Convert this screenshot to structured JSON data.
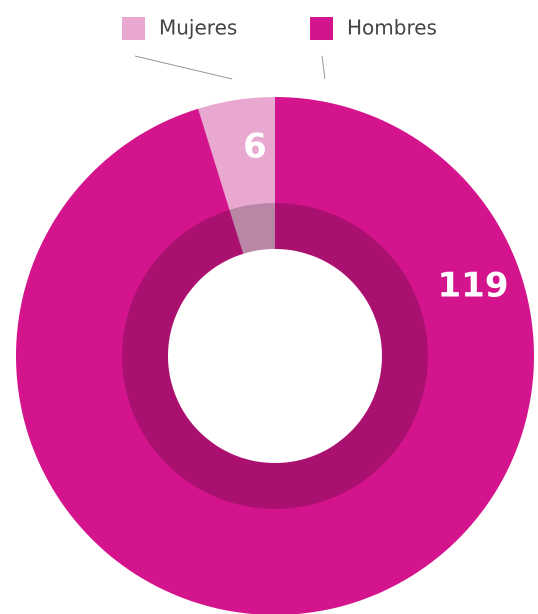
{
  "chart_data": {
    "type": "donut",
    "categories": [
      "Mujeres",
      "Hombres"
    ],
    "values": [
      6,
      119
    ],
    "colors": [
      "#e8a8d0",
      "#d4148c"
    ],
    "legend": "top"
  }
}
